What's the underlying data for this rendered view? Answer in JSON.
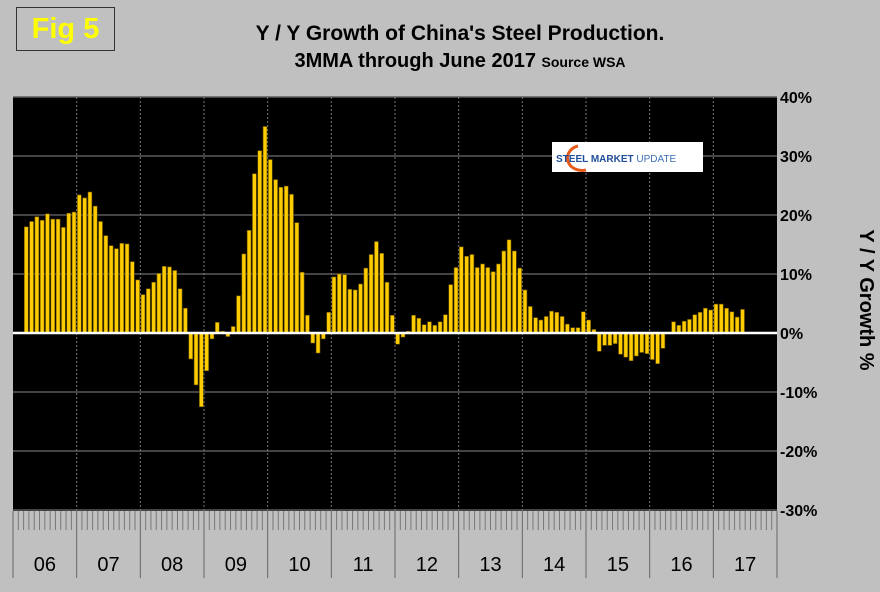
{
  "figure_label": "Fig 5",
  "logo_text": {
    "part1": "STEEL",
    "part2": "MARKET",
    "part3": "UPDATE"
  },
  "colors": {
    "bar": "#ffcc00",
    "plot_bg": "#000000",
    "page_bg": "#c0c0c0",
    "fig_label": "#ffff00"
  },
  "chart_data": {
    "type": "bar",
    "title": "Y / Y Growth of China's Steel Production.",
    "subtitle": "3MMA through June 2017",
    "source": "Source WSA",
    "xlabel": "",
    "ylabel": "Y / Y Growth %",
    "ylim": [
      -30,
      40
    ],
    "y_ticks": [
      "40%",
      "30%",
      "20%",
      "10%",
      "0%",
      "-10%",
      "-20%",
      "-30%"
    ],
    "y_tick_values": [
      40,
      30,
      20,
      10,
      0,
      -10,
      -20,
      -30
    ],
    "year_labels": [
      "06",
      "07",
      "08",
      "09",
      "10",
      "11",
      "12",
      "13",
      "14",
      "15",
      "16",
      "17"
    ],
    "start": "2006-03",
    "end": "2017-06",
    "grid": true,
    "values": [
      18.0,
      18.9,
      19.7,
      19.1,
      20.2,
      19.3,
      19.3,
      17.9,
      20.3,
      20.5,
      23.4,
      22.9,
      23.9,
      21.5,
      18.9,
      16.5,
      14.8,
      14.3,
      15.2,
      15.1,
      12.1,
      9.0,
      6.5,
      7.5,
      8.6,
      10.1,
      11.3,
      11.2,
      10.6,
      7.5,
      4.2,
      -4.4,
      -8.8,
      -12.5,
      -6.4,
      -1.0,
      1.8,
      0.3,
      -0.6,
      1.1,
      6.3,
      13.4,
      17.4,
      27.0,
      30.9,
      35.0,
      29.4,
      26.0,
      24.7,
      24.9,
      23.5,
      18.7,
      10.3,
      3.0,
      -1.7,
      -3.4,
      -1.0,
      3.5,
      9.5,
      10.0,
      9.9,
      7.4,
      7.3,
      8.3,
      11.0,
      13.3,
      15.5,
      13.5,
      8.6,
      3.0,
      -1.9,
      -0.7,
      0.3,
      3.0,
      2.5,
      1.4,
      1.9,
      1.3,
      1.9,
      3.1,
      8.2,
      11.1,
      14.6,
      13.0,
      13.3,
      11.1,
      11.7,
      11.1,
      10.4,
      11.7,
      13.9,
      15.8,
      13.9,
      11.0,
      7.3,
      4.5,
      2.6,
      2.2,
      2.8,
      3.7,
      3.5,
      2.8,
      1.5,
      0.9,
      0.9,
      3.6,
      2.2,
      0.6,
      -3.1,
      -2.1,
      -2.1,
      -1.8,
      -3.6,
      -4.1,
      -4.7,
      -3.9,
      -3.3,
      -3.5,
      -4.5,
      -5.2,
      -2.6,
      0.0,
      1.9,
      1.3,
      2.0,
      2.3,
      3.1,
      3.5,
      4.2,
      3.9,
      4.9,
      4.9,
      4.2,
      3.6,
      2.7,
      4.0
    ]
  }
}
